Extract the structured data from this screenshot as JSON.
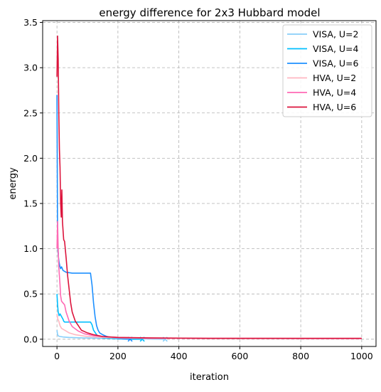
{
  "chart_data": {
    "type": "line",
    "title": "energy difference for 2x3 Hubbard model",
    "xlabel": "iteration",
    "ylabel": "energy",
    "xlim": [
      -47,
      1047
    ],
    "ylim": [
      -0.08,
      3.52
    ],
    "x_ticks": [
      0,
      200,
      400,
      600,
      800,
      1000
    ],
    "y_ticks": [
      0.0,
      0.5,
      1.0,
      1.5,
      2.0,
      2.5,
      3.0,
      3.5
    ],
    "x_tick_labels": [
      "0",
      "200",
      "400",
      "600",
      "800",
      "1000"
    ],
    "y_tick_labels": [
      "0.0",
      "0.5",
      "1.0",
      "1.5",
      "2.0",
      "2.5",
      "3.0",
      "3.5"
    ],
    "grid": true,
    "legend_position": "top-right",
    "series": [
      {
        "name": "VISA, U=2",
        "color": "#87cefa",
        "x": [
          0,
          2,
          5,
          10,
          20,
          40,
          80,
          150,
          250,
          350,
          355
        ],
        "y": [
          0.1,
          0.05,
          0.035,
          0.03,
          0.025,
          0.02,
          0.015,
          0.01,
          0.005,
          0.0,
          0.0
        ],
        "end_marker": {
          "x": 355,
          "y": 0.0
        }
      },
      {
        "name": "VISA, U=4",
        "color": "#00bfff",
        "x": [
          0,
          2,
          4,
          7,
          10,
          15,
          20,
          22,
          25,
          30,
          50,
          80,
          100,
          110,
          115,
          120,
          130,
          140,
          150,
          170,
          200,
          240,
          260,
          280
        ],
        "y": [
          0.5,
          0.38,
          0.3,
          0.26,
          0.28,
          0.25,
          0.22,
          0.2,
          0.19,
          0.19,
          0.19,
          0.19,
          0.19,
          0.19,
          0.16,
          0.1,
          0.05,
          0.025,
          0.015,
          0.01,
          0.005,
          0.0,
          0.0,
          0.0
        ],
        "end_marker": {
          "x": 280,
          "y": 0.0
        }
      },
      {
        "name": "VISA, U=6",
        "color": "#1e90ff",
        "x": [
          0,
          1,
          2,
          3,
          5,
          7,
          10,
          12,
          15,
          20,
          25,
          30,
          50,
          80,
          110,
          115,
          120,
          125,
          130,
          135,
          140,
          150,
          160,
          175,
          200,
          220,
          240
        ],
        "y": [
          2.7,
          1.9,
          1.1,
          1.0,
          0.9,
          0.85,
          0.8,
          0.78,
          0.8,
          0.76,
          0.75,
          0.74,
          0.73,
          0.73,
          0.73,
          0.6,
          0.4,
          0.25,
          0.15,
          0.1,
          0.07,
          0.05,
          0.035,
          0.02,
          0.01,
          0.005,
          0.0
        ],
        "end_marker": {
          "x": 240,
          "y": 0.0
        }
      },
      {
        "name": "HVA, U=2",
        "color": "#ffb6c1",
        "x": [
          0,
          3,
          6,
          10,
          15,
          20,
          30,
          40,
          60,
          80,
          100,
          150,
          200,
          300,
          500,
          800,
          1000
        ],
        "y": [
          0.28,
          0.22,
          0.2,
          0.15,
          0.12,
          0.11,
          0.09,
          0.07,
          0.05,
          0.04,
          0.03,
          0.02,
          0.015,
          0.01,
          0.008,
          0.007,
          0.007
        ],
        "end_marker": null
      },
      {
        "name": "HVA, U=4",
        "color": "#ff69b4",
        "x": [
          0,
          2,
          4,
          6,
          8,
          10,
          12,
          15,
          20,
          25,
          30,
          40,
          50,
          70,
          90,
          120,
          150,
          200,
          300,
          500,
          800,
          1000
        ],
        "y": [
          1.0,
          1.3,
          1.0,
          0.8,
          0.7,
          0.6,
          0.48,
          0.42,
          0.4,
          0.38,
          0.3,
          0.2,
          0.14,
          0.09,
          0.06,
          0.04,
          0.03,
          0.02,
          0.012,
          0.01,
          0.008,
          0.008
        ],
        "end_marker": null
      },
      {
        "name": "HVA, U=6",
        "color": "#dc143c",
        "x": [
          0,
          2,
          4,
          6,
          8,
          10,
          12,
          14,
          16,
          18,
          20,
          22,
          25,
          30,
          35,
          40,
          45,
          50,
          60,
          70,
          80,
          100,
          120,
          150,
          200,
          300,
          500,
          800,
          1000
        ],
        "y": [
          2.9,
          3.35,
          3.1,
          2.5,
          2.1,
          1.9,
          1.5,
          1.35,
          1.65,
          1.3,
          1.2,
          1.1,
          1.08,
          0.9,
          0.7,
          0.55,
          0.4,
          0.3,
          0.2,
          0.15,
          0.1,
          0.07,
          0.05,
          0.03,
          0.02,
          0.015,
          0.01,
          0.01,
          0.01
        ],
        "end_marker": null
      }
    ]
  }
}
